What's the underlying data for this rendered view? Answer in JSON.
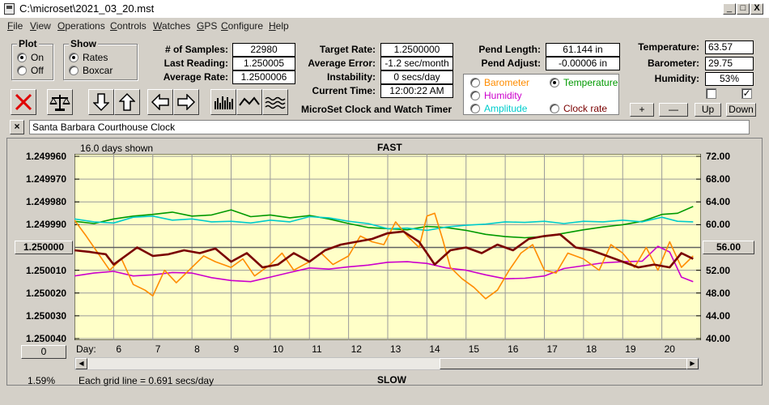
{
  "window": {
    "title": "C:\\microset\\2021_03_20.mst",
    "minimize": "_",
    "maximize": "□",
    "close": "X"
  },
  "menu": [
    "File",
    "View",
    "Operations",
    "Controls",
    "Watches",
    "GPS",
    "Configure",
    "Help"
  ],
  "plot_group": {
    "label": "Plot",
    "on": "On",
    "off": "Off",
    "selected": "On"
  },
  "show_group": {
    "label": "Show",
    "rates": "Rates",
    "boxcar": "Boxcar",
    "selected": "Rates"
  },
  "stats": {
    "samples_label": "# of Samples:",
    "samples": "22980",
    "last_reading_label": "Last Reading:",
    "last_reading": "1.250005",
    "average_rate_label": "Average Rate:",
    "average_rate": "1.2500006",
    "target_rate_label": "Target Rate:",
    "target_rate": "1.2500000",
    "average_error_label": "Average Error:",
    "average_error": "-1.2 sec/month",
    "instability_label": "Instability:",
    "instability": "0 secs/day",
    "current_time_label": "Current Time:",
    "current_time": "12:00:22 AM",
    "pend_length_label": "Pend Length:",
    "pend_length": "61.144 in",
    "pend_adjust_label": "Pend Adjust:",
    "pend_adjust": "-0.00006 in",
    "temperature_label": "Temperature:",
    "temperature": "63.57",
    "barometer_label": "Barometer:",
    "barometer": "29.75",
    "humidity_label": "Humidity:",
    "humidity": "53%"
  },
  "sensor_select": {
    "barometer": "Barometer",
    "temperature": "Temperature",
    "humidity": "Humidity",
    "amplitude": "Amplitude",
    "clock_rate": "Clock rate",
    "selected": "Temperature"
  },
  "scale_buttons": {
    "plus": "+",
    "minus": "—",
    "up": "Up",
    "down": "Down"
  },
  "checkboxes": {
    "left_checked": false,
    "right_checked": true,
    "check_glyph": "✓"
  },
  "subtitle": "MicroSet Clock and Watch Timer",
  "clock_name": "Santa Barbara Courthouse Clock",
  "clock_name_clear": "×",
  "colors": {
    "barometer": "#ff8c00",
    "temperature": "#009900",
    "humidity": "#cc00cc",
    "amplitude": "#00cccc",
    "clock_rate": "#7a0000",
    "plot_bg": "#ffffc8"
  },
  "chart_data": {
    "type": "line",
    "top_label": "FAST",
    "bottom_label": "SLOW",
    "days_shown": "16.0 days shown",
    "grid_note": "Each grid line = 0.691 secs/day",
    "x_axis_label": "Day:",
    "x_ticks": [
      "6",
      "7",
      "8",
      "9",
      "10",
      "11",
      "12",
      "13",
      "14",
      "15",
      "16",
      "17",
      "18",
      "19",
      "20"
    ],
    "xlim": [
      5.0,
      21.0
    ],
    "left_axis_ticks": [
      "1.249960",
      "1.249970",
      "1.249980",
      "1.249990",
      "1.250000",
      "1.250010",
      "1.250020",
      "1.250030",
      "1.250040"
    ],
    "left_ylim": [
      1.24996,
      1.25004
    ],
    "left_center_button": "1.250000",
    "right_axis_ticks": [
      "72.00",
      "68.00",
      "64.00",
      "60.00",
      "56.00",
      "52.00",
      "48.00",
      "44.00",
      "40.00"
    ],
    "right_ylim": [
      40.0,
      72.0
    ],
    "right_center_button": "56.00",
    "left_zero_button": "0",
    "percent": "1.59%",
    "series": [
      {
        "key": "temperature",
        "points": [
          [
            5.0,
            60.6
          ],
          [
            5.5,
            60.2
          ],
          [
            6.0,
            61.0
          ],
          [
            6.5,
            61.5
          ],
          [
            7.0,
            61.8
          ],
          [
            7.5,
            62.2
          ],
          [
            8.0,
            61.5
          ],
          [
            8.5,
            61.7
          ],
          [
            9.0,
            62.6
          ],
          [
            9.5,
            61.4
          ],
          [
            10.0,
            61.7
          ],
          [
            10.5,
            61.2
          ],
          [
            11.0,
            61.6
          ],
          [
            11.5,
            61.0
          ],
          [
            12.0,
            60.2
          ],
          [
            12.5,
            59.5
          ],
          [
            13.0,
            59.3
          ],
          [
            13.5,
            59.1
          ],
          [
            14.0,
            59.7
          ],
          [
            14.5,
            59.5
          ],
          [
            15.0,
            59.0
          ],
          [
            15.5,
            58.3
          ],
          [
            16.0,
            57.9
          ],
          [
            16.5,
            57.7
          ],
          [
            17.0,
            57.9
          ],
          [
            17.5,
            58.5
          ],
          [
            18.0,
            59.1
          ],
          [
            18.5,
            59.6
          ],
          [
            19.0,
            60.0
          ],
          [
            19.5,
            60.6
          ],
          [
            20.0,
            61.8
          ],
          [
            20.4,
            62.0
          ],
          [
            20.8,
            63.2
          ]
        ]
      },
      {
        "key": "amplitude",
        "points": [
          [
            5.0,
            61.0
          ],
          [
            5.5,
            60.5
          ],
          [
            6.0,
            60.3
          ],
          [
            6.5,
            61.3
          ],
          [
            7.0,
            61.5
          ],
          [
            7.5,
            60.8
          ],
          [
            8.0,
            61.0
          ],
          [
            8.5,
            60.5
          ],
          [
            9.0,
            60.6
          ],
          [
            9.5,
            60.3
          ],
          [
            10.0,
            60.8
          ],
          [
            10.5,
            60.5
          ],
          [
            11.0,
            61.4
          ],
          [
            11.5,
            61.2
          ],
          [
            12.0,
            60.6
          ],
          [
            12.5,
            60.2
          ],
          [
            13.0,
            59.3
          ],
          [
            13.5,
            59.4
          ],
          [
            14.0,
            59.0
          ],
          [
            14.5,
            59.6
          ],
          [
            15.0,
            59.9
          ],
          [
            15.5,
            60.1
          ],
          [
            16.0,
            60.5
          ],
          [
            16.5,
            60.4
          ],
          [
            17.0,
            60.6
          ],
          [
            17.5,
            60.2
          ],
          [
            18.0,
            60.6
          ],
          [
            18.5,
            60.5
          ],
          [
            19.0,
            60.8
          ],
          [
            19.5,
            60.5
          ],
          [
            20.0,
            61.3
          ],
          [
            20.4,
            60.6
          ],
          [
            20.8,
            60.5
          ]
        ]
      },
      {
        "key": "humidity",
        "points": [
          [
            5.0,
            51.0
          ],
          [
            5.5,
            51.5
          ],
          [
            6.0,
            51.8
          ],
          [
            6.5,
            51.0
          ],
          [
            7.0,
            51.2
          ],
          [
            7.5,
            51.6
          ],
          [
            8.0,
            51.5
          ],
          [
            8.5,
            50.7
          ],
          [
            9.0,
            50.2
          ],
          [
            9.5,
            50.0
          ],
          [
            10.0,
            50.8
          ],
          [
            10.5,
            51.6
          ],
          [
            11.0,
            52.4
          ],
          [
            11.5,
            52.2
          ],
          [
            12.0,
            52.6
          ],
          [
            12.5,
            52.9
          ],
          [
            13.0,
            53.4
          ],
          [
            13.5,
            53.5
          ],
          [
            14.0,
            53.2
          ],
          [
            14.5,
            52.4
          ],
          [
            15.0,
            52.0
          ],
          [
            15.5,
            51.2
          ],
          [
            16.0,
            50.5
          ],
          [
            16.5,
            50.6
          ],
          [
            17.0,
            51.0
          ],
          [
            17.5,
            52.3
          ],
          [
            18.0,
            52.8
          ],
          [
            18.5,
            53.3
          ],
          [
            19.0,
            53.5
          ],
          [
            19.5,
            53.6
          ],
          [
            19.9,
            56.2
          ],
          [
            20.2,
            55.2
          ],
          [
            20.5,
            50.8
          ],
          [
            20.8,
            50.0
          ]
        ]
      },
      {
        "key": "barometer",
        "points": [
          [
            5.0,
            60.8
          ],
          [
            5.3,
            58.0
          ],
          [
            5.6,
            55.0
          ],
          [
            5.9,
            52.0
          ],
          [
            6.2,
            54.0
          ],
          [
            6.5,
            49.5
          ],
          [
            6.8,
            48.5
          ],
          [
            7.0,
            47.5
          ],
          [
            7.3,
            52.0
          ],
          [
            7.6,
            49.8
          ],
          [
            8.0,
            52.5
          ],
          [
            8.3,
            54.5
          ],
          [
            8.6,
            53.5
          ],
          [
            9.0,
            52.5
          ],
          [
            9.3,
            54.0
          ],
          [
            9.6,
            51.0
          ],
          [
            10.0,
            53.0
          ],
          [
            10.3,
            55.0
          ],
          [
            10.6,
            52.0
          ],
          [
            11.0,
            53.5
          ],
          [
            11.3,
            55.0
          ],
          [
            11.6,
            53.0
          ],
          [
            12.0,
            54.5
          ],
          [
            12.3,
            58.0
          ],
          [
            12.6,
            57.0
          ],
          [
            12.9,
            56.5
          ],
          [
            13.2,
            60.5
          ],
          [
            13.5,
            58.0
          ],
          [
            13.8,
            56.0
          ],
          [
            14.0,
            61.5
          ],
          [
            14.2,
            62.0
          ],
          [
            14.4,
            57.5
          ],
          [
            14.6,
            52.5
          ],
          [
            14.9,
            50.5
          ],
          [
            15.2,
            49.0
          ],
          [
            15.5,
            47.0
          ],
          [
            15.8,
            48.5
          ],
          [
            16.1,
            52.0
          ],
          [
            16.4,
            55.0
          ],
          [
            16.7,
            56.5
          ],
          [
            17.0,
            52.0
          ],
          [
            17.3,
            51.5
          ],
          [
            17.6,
            55.0
          ],
          [
            18.0,
            54.0
          ],
          [
            18.4,
            52.0
          ],
          [
            18.7,
            56.5
          ],
          [
            19.0,
            55.0
          ],
          [
            19.3,
            52.5
          ],
          [
            19.6,
            56.0
          ],
          [
            19.9,
            52.0
          ],
          [
            20.2,
            57.0
          ],
          [
            20.5,
            52.5
          ],
          [
            20.8,
            54.5
          ]
        ]
      },
      {
        "key": "clock_rate",
        "points": [
          [
            5.0,
            55.5
          ],
          [
            5.4,
            55.2
          ],
          [
            5.8,
            54.8
          ],
          [
            6.0,
            53.0
          ],
          [
            6.2,
            54.0
          ],
          [
            6.6,
            56.0
          ],
          [
            7.0,
            54.5
          ],
          [
            7.4,
            54.8
          ],
          [
            7.8,
            55.5
          ],
          [
            8.2,
            55.0
          ],
          [
            8.6,
            55.8
          ],
          [
            9.0,
            53.5
          ],
          [
            9.4,
            55.0
          ],
          [
            9.8,
            52.5
          ],
          [
            10.2,
            53.0
          ],
          [
            10.6,
            55.0
          ],
          [
            11.0,
            53.5
          ],
          [
            11.4,
            55.5
          ],
          [
            11.8,
            56.5
          ],
          [
            12.2,
            57.0
          ],
          [
            12.6,
            57.5
          ],
          [
            13.0,
            58.5
          ],
          [
            13.4,
            58.8
          ],
          [
            13.8,
            57.0
          ],
          [
            14.0,
            55.0
          ],
          [
            14.2,
            53.0
          ],
          [
            14.6,
            55.5
          ],
          [
            15.0,
            56.0
          ],
          [
            15.4,
            55.0
          ],
          [
            15.8,
            56.5
          ],
          [
            16.2,
            55.5
          ],
          [
            16.6,
            57.5
          ],
          [
            17.0,
            58.0
          ],
          [
            17.4,
            58.3
          ],
          [
            17.8,
            56.0
          ],
          [
            18.2,
            55.5
          ],
          [
            18.6,
            54.5
          ],
          [
            19.0,
            53.5
          ],
          [
            19.4,
            52.5
          ],
          [
            19.8,
            53.0
          ],
          [
            20.2,
            52.5
          ],
          [
            20.5,
            55.0
          ],
          [
            20.8,
            54.0
          ]
        ]
      }
    ]
  }
}
